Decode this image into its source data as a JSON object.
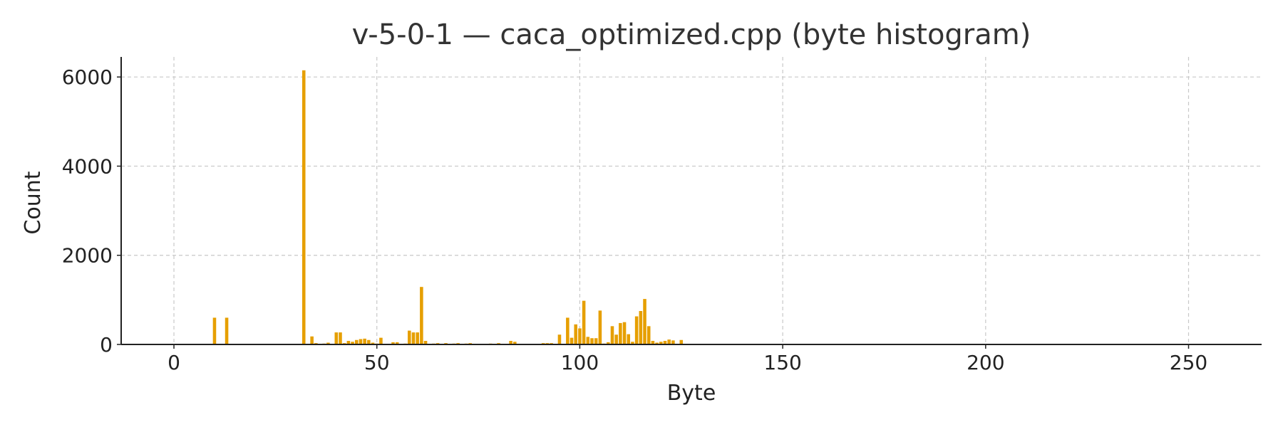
{
  "chart_data": {
    "type": "bar",
    "title": "v-5-0-1 — caca_optimized.cpp (byte histogram)",
    "xlabel": "Byte",
    "ylabel": "Count",
    "xlim": [
      -13,
      268
    ],
    "ylim": [
      0,
      6450
    ],
    "xticks": [
      0,
      50,
      100,
      150,
      200,
      250
    ],
    "yticks": [
      0,
      2000,
      4000,
      6000
    ],
    "grid": true,
    "bar_color": "#E69F00",
    "points": [
      {
        "x": 10,
        "y": 600
      },
      {
        "x": 13,
        "y": 600
      },
      {
        "x": 32,
        "y": 6150
      },
      {
        "x": 34,
        "y": 180
      },
      {
        "x": 35,
        "y": 30
      },
      {
        "x": 37,
        "y": 20
      },
      {
        "x": 38,
        "y": 40
      },
      {
        "x": 40,
        "y": 270
      },
      {
        "x": 41,
        "y": 270
      },
      {
        "x": 42,
        "y": 30
      },
      {
        "x": 43,
        "y": 80
      },
      {
        "x": 44,
        "y": 60
      },
      {
        "x": 45,
        "y": 100
      },
      {
        "x": 46,
        "y": 120
      },
      {
        "x": 47,
        "y": 130
      },
      {
        "x": 48,
        "y": 100
      },
      {
        "x": 49,
        "y": 40
      },
      {
        "x": 50,
        "y": 20
      },
      {
        "x": 51,
        "y": 150
      },
      {
        "x": 53,
        "y": 10
      },
      {
        "x": 54,
        "y": 50
      },
      {
        "x": 55,
        "y": 50
      },
      {
        "x": 56,
        "y": 10
      },
      {
        "x": 57,
        "y": 20
      },
      {
        "x": 58,
        "y": 310
      },
      {
        "x": 59,
        "y": 270
      },
      {
        "x": 60,
        "y": 270
      },
      {
        "x": 61,
        "y": 1290
      },
      {
        "x": 62,
        "y": 80
      },
      {
        "x": 64,
        "y": 20
      },
      {
        "x": 65,
        "y": 30
      },
      {
        "x": 67,
        "y": 30
      },
      {
        "x": 69,
        "y": 20
      },
      {
        "x": 70,
        "y": 30
      },
      {
        "x": 72,
        "y": 20
      },
      {
        "x": 73,
        "y": 30
      },
      {
        "x": 78,
        "y": 20
      },
      {
        "x": 80,
        "y": 30
      },
      {
        "x": 83,
        "y": 80
      },
      {
        "x": 84,
        "y": 60
      },
      {
        "x": 91,
        "y": 30
      },
      {
        "x": 92,
        "y": 30
      },
      {
        "x": 93,
        "y": 30
      },
      {
        "x": 95,
        "y": 220
      },
      {
        "x": 96,
        "y": 10
      },
      {
        "x": 97,
        "y": 600
      },
      {
        "x": 98,
        "y": 150
      },
      {
        "x": 99,
        "y": 450
      },
      {
        "x": 100,
        "y": 360
      },
      {
        "x": 101,
        "y": 980
      },
      {
        "x": 102,
        "y": 170
      },
      {
        "x": 103,
        "y": 140
      },
      {
        "x": 104,
        "y": 140
      },
      {
        "x": 105,
        "y": 760
      },
      {
        "x": 106,
        "y": 20
      },
      {
        "x": 107,
        "y": 50
      },
      {
        "x": 108,
        "y": 410
      },
      {
        "x": 109,
        "y": 220
      },
      {
        "x": 110,
        "y": 480
      },
      {
        "x": 111,
        "y": 500
      },
      {
        "x": 112,
        "y": 230
      },
      {
        "x": 113,
        "y": 60
      },
      {
        "x": 114,
        "y": 630
      },
      {
        "x": 115,
        "y": 750
      },
      {
        "x": 116,
        "y": 1020
      },
      {
        "x": 117,
        "y": 410
      },
      {
        "x": 118,
        "y": 80
      },
      {
        "x": 119,
        "y": 40
      },
      {
        "x": 120,
        "y": 60
      },
      {
        "x": 121,
        "y": 80
      },
      {
        "x": 122,
        "y": 110
      },
      {
        "x": 123,
        "y": 90
      },
      {
        "x": 125,
        "y": 100
      }
    ]
  }
}
